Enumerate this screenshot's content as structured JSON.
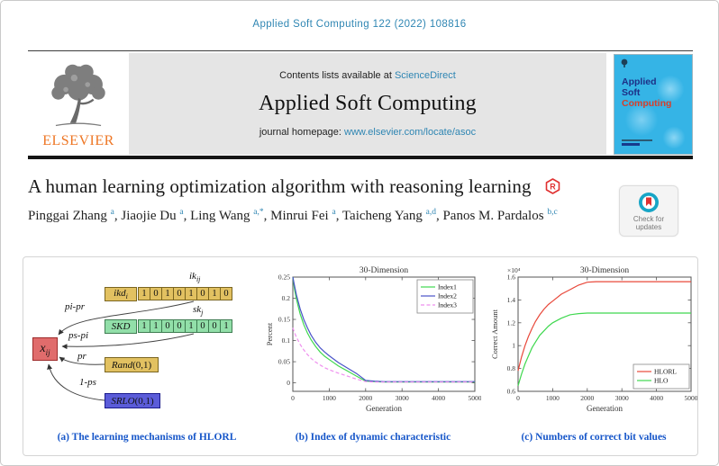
{
  "page": {
    "journal_ref": "Applied Soft Computing 122 (2022) 108816"
  },
  "banner": {
    "contents_prefix": "Contents lists available at ",
    "sciencedirect_link": "ScienceDirect",
    "journal_name": "Applied Soft Computing",
    "homepage_prefix": "journal homepage: ",
    "homepage_url": "www.elsevier.com/locate/asoc"
  },
  "elsevier_logo_text": "ELSEVIER",
  "cover": {
    "title_line1": "Applied",
    "title_line2": "Soft",
    "title_line3": "Computing"
  },
  "article": {
    "title": "A human learning optimization algorithm with reasoning learning",
    "authors": [
      {
        "name": "Pinggai Zhang",
        "sup": "a"
      },
      {
        "name": "Jiaojie Du",
        "sup": "a"
      },
      {
        "name": "Ling Wang",
        "sup": "a,*"
      },
      {
        "name": "Minrui Fei",
        "sup": "a"
      },
      {
        "name": "Taicheng Yang",
        "sup": "a,d"
      },
      {
        "name": "Panos M. Pardalos",
        "sup": "b,c"
      }
    ],
    "check_updates": {
      "line1": "Check for",
      "line2": "updates"
    },
    "r_badge_letter": "R"
  },
  "colors": {
    "link_teal": "#2f86b3",
    "caption_blue": "#1656c9",
    "elsevier_orange": "#ee7624",
    "diagram_yellow": "#e2c161",
    "diagram_green": "#92dfa9",
    "diagram_red": "#e06c6c",
    "diagram_blue": "#5b5cd9"
  },
  "diagram": {
    "caption": "(a) The learning mechanisms of HLORL",
    "x_box": {
      "base": "x",
      "sub": "ij"
    },
    "ikd_box": {
      "base": "ikd",
      "sub": "i"
    },
    "ik_row_label": {
      "base": "ik",
      "sub": "ij"
    },
    "ikd_cells": [
      "1",
      "0",
      "1",
      "0",
      "1",
      "0",
      "1",
      "0"
    ],
    "skd_box": {
      "base": "SKD",
      "sub": ""
    },
    "sk_row_label": {
      "base": "sk",
      "sub": "j"
    },
    "skd_cells": [
      "1",
      "1",
      "0",
      "0",
      "1",
      "0",
      "0",
      "1"
    ],
    "rand_box": {
      "base": "Rand",
      "paren": "(0,1)"
    },
    "srlo_box": {
      "base": "SRLO",
      "paren": "(0,1)"
    },
    "arrows": {
      "a1": "pi-pr",
      "a2": "ps-pi",
      "a3": "pr",
      "a4": "1-ps"
    }
  },
  "chart_data": [
    {
      "type": "line",
      "caption": "(b) Index of dynamic characteristic",
      "title": "30-Dimension",
      "xlabel": "Generation",
      "ylabel": "Percent",
      "xlim": [
        0,
        5000
      ],
      "ylim": [
        -0.02,
        0.25
      ],
      "xticks": [
        0,
        1000,
        2000,
        3000,
        4000,
        5000
      ],
      "yticks": [
        0,
        0.05,
        0.1,
        0.15,
        0.2,
        0.25
      ],
      "grid": false,
      "legend_position": "top-right",
      "x": [
        0,
        50,
        100,
        200,
        300,
        400,
        500,
        625,
        750,
        875,
        1000,
        1250,
        1500,
        1750,
        2000,
        2250,
        2500,
        3000,
        3500,
        4000,
        4500,
        5000
      ],
      "series": [
        {
          "name": "Index1",
          "color": "#3fd84f",
          "dash": false,
          "y": [
            0.25,
            0.22,
            0.198,
            0.163,
            0.138,
            0.118,
            0.102,
            0.086,
            0.073,
            0.063,
            0.055,
            0.04,
            0.028,
            0.016,
            0.004,
            0.003,
            0.002,
            0.002,
            0.002,
            0.002,
            0.002,
            0.002
          ]
        },
        {
          "name": "Index2",
          "color": "#4953c8",
          "dash": false,
          "y": [
            0.25,
            0.228,
            0.208,
            0.175,
            0.15,
            0.13,
            0.113,
            0.096,
            0.083,
            0.073,
            0.064,
            0.048,
            0.035,
            0.022,
            0.006,
            0.004,
            0.003,
            0.003,
            0.003,
            0.003,
            0.003,
            0.003
          ]
        },
        {
          "name": "Index3",
          "color": "#ef8fef",
          "dash": true,
          "y": [
            0.13,
            0.118,
            0.108,
            0.091,
            0.078,
            0.067,
            0.058,
            0.049,
            0.042,
            0.036,
            0.031,
            0.023,
            0.016,
            0.009,
            0.003,
            0.002,
            0.002,
            0.002,
            0.002,
            0.002,
            0.002,
            0.002
          ]
        }
      ]
    },
    {
      "type": "line",
      "caption": "(c) Numbers of correct bit values",
      "title": "30-Dimension",
      "xlabel": "Generation",
      "ylabel": "Correct Amount",
      "y_exponent_label": "×10⁴",
      "xlim": [
        0,
        5000
      ],
      "ylim": [
        0.6,
        1.6
      ],
      "xticks": [
        0,
        1000,
        2000,
        3000,
        4000,
        5000
      ],
      "yticks": [
        0.6,
        0.8,
        1,
        1.2,
        1.4,
        1.6
      ],
      "grid": false,
      "legend_position": "bottom-right",
      "x": [
        0,
        50,
        100,
        200,
        300,
        400,
        500,
        625,
        750,
        875,
        1000,
        1250,
        1500,
        1750,
        2000,
        2250,
        2500,
        3000,
        3500,
        4000,
        4500,
        5000
      ],
      "series": [
        {
          "name": "HLORL",
          "color": "#e8483a",
          "dash": false,
          "y": [
            0.78,
            0.84,
            0.9,
            1.0,
            1.08,
            1.15,
            1.21,
            1.27,
            1.32,
            1.36,
            1.39,
            1.45,
            1.49,
            1.53,
            1.555,
            1.56,
            1.56,
            1.56,
            1.56,
            1.56,
            1.56,
            1.56
          ]
        },
        {
          "name": "HLO",
          "color": "#3fd84f",
          "dash": false,
          "y": [
            0.65,
            0.7,
            0.75,
            0.84,
            0.91,
            0.98,
            1.03,
            1.09,
            1.13,
            1.17,
            1.2,
            1.24,
            1.27,
            1.28,
            1.285,
            1.285,
            1.285,
            1.285,
            1.285,
            1.285,
            1.285,
            1.285
          ]
        }
      ]
    }
  ]
}
